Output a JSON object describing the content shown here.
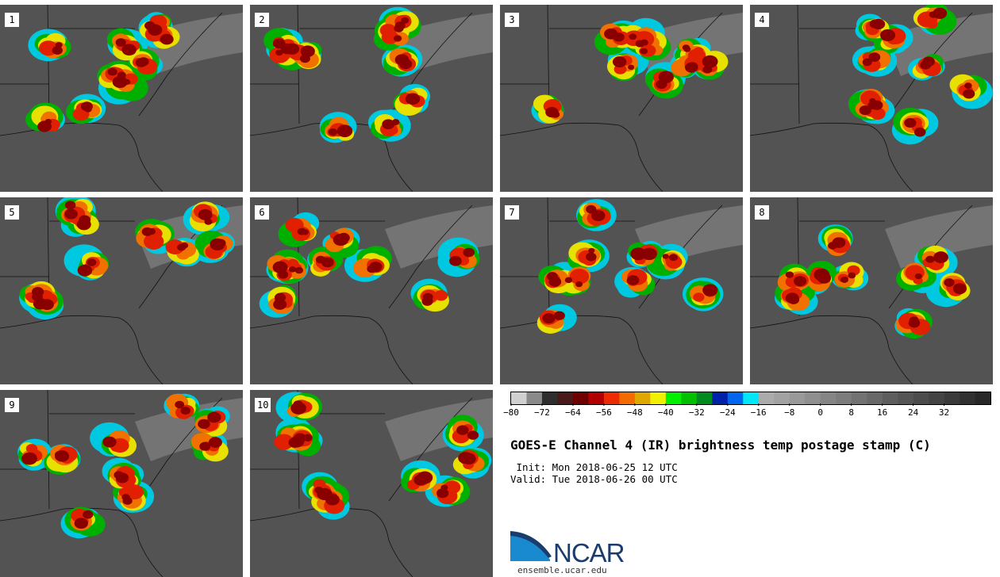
{
  "title": "GOES-E Channel 4 (IR) brightness temp postage stamp (C)",
  "init": " Init: Mon 2018-06-25 12 UTC",
  "valid": "Valid: Tue 2018-06-26 00 UTC",
  "logo": {
    "name": "NCAR",
    "url": "ensemble.ucar.edu"
  },
  "colorbar": {
    "colors": [
      "#d0d0d0",
      "#8a8a8a",
      "#2e2e2e",
      "#4a1a1a",
      "#6e0000",
      "#b20000",
      "#ee2a00",
      "#f26a00",
      "#dfa800",
      "#f0f000",
      "#00f000",
      "#00c000",
      "#008a20",
      "#0022aa",
      "#0066ee",
      "#00e8f8",
      "#ababab",
      "#a2a2a2",
      "#999999",
      "#8f8f8f",
      "#858585",
      "#7c7c7c",
      "#727272",
      "#686868",
      "#5e5e5e",
      "#555555",
      "#4c4c4c",
      "#434343",
      "#3a3a3a",
      "#313131",
      "#282828"
    ],
    "tick_values": [
      "−80",
      "−72",
      "−64",
      "−56",
      "−48",
      "−40",
      "−32",
      "−24",
      "−16",
      "−8",
      "0",
      "8",
      "16",
      "24",
      "32"
    ]
  },
  "panels": [
    {
      "label": "1"
    },
    {
      "label": "2"
    },
    {
      "label": "3"
    },
    {
      "label": "4"
    },
    {
      "label": "5"
    },
    {
      "label": "6"
    },
    {
      "label": "7"
    },
    {
      "label": "8"
    },
    {
      "label": "9"
    },
    {
      "label": "10"
    }
  ]
}
